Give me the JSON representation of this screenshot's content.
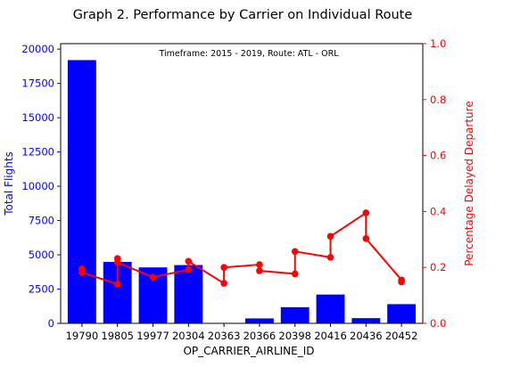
{
  "chart_data": {
    "type": "bar",
    "title": "Graph 2. Performance by Carrier on Individual Route",
    "annotation": "Timeframe: 2015 - 2019, Route: ATL - ORL",
    "xlabel": "OP_CARRIER_AIRLINE_ID",
    "ylabel_left": "Total Flights",
    "ylabel_right": "Percentage Delayed Departure",
    "categories": [
      "19790",
      "19805",
      "19977",
      "20304",
      "20363",
      "20366",
      "20398",
      "20416",
      "20436",
      "20452"
    ],
    "ylim_left": [
      0,
      20400
    ],
    "yticks_left": [
      0,
      2500,
      5000,
      7500,
      10000,
      12500,
      15000,
      17500,
      20000
    ],
    "ytick_labels_left": [
      "0",
      "2500",
      "5000",
      "7500",
      "10000",
      "12500",
      "15000",
      "17500",
      "20000"
    ],
    "ylim_right": [
      0,
      1.0
    ],
    "yticks_right": [
      0.0,
      0.2,
      0.4,
      0.6,
      0.8,
      1.0
    ],
    "ytick_labels_right": [
      "0.0",
      "0.2",
      "0.4",
      "0.6",
      "0.8",
      "1.0"
    ],
    "grid": false,
    "series": [
      {
        "type": "bar",
        "axis": "left",
        "color": "#0000ff",
        "values": [
          19200,
          4480,
          4080,
          4250,
          0,
          360,
          1180,
          2100,
          380,
          1400
        ]
      },
      {
        "type": "line",
        "axis": "right",
        "color": "#ff0000",
        "points": [
          {
            "x": "19790",
            "y": 0.195
          },
          {
            "x": "19790",
            "y": 0.182
          },
          {
            "x": "19805",
            "y": 0.14
          },
          {
            "x": "19805",
            "y": 0.232
          },
          {
            "x": "19805",
            "y": 0.218
          },
          {
            "x": "19977",
            "y": 0.165
          },
          {
            "x": "20304",
            "y": 0.192
          },
          {
            "x": "20304",
            "y": 0.222
          },
          {
            "x": "20363",
            "y": 0.143
          },
          {
            "x": "20363",
            "y": 0.2
          },
          {
            "x": "20366",
            "y": 0.21
          },
          {
            "x": "20366",
            "y": 0.188
          },
          {
            "x": "20398",
            "y": 0.177
          },
          {
            "x": "20398",
            "y": 0.257
          },
          {
            "x": "20416",
            "y": 0.236
          },
          {
            "x": "20416",
            "y": 0.311
          },
          {
            "x": "20436",
            "y": 0.395
          },
          {
            "x": "20436",
            "y": 0.303
          },
          {
            "x": "20452",
            "y": 0.155
          },
          {
            "x": "20452",
            "y": 0.148
          }
        ]
      }
    ]
  }
}
